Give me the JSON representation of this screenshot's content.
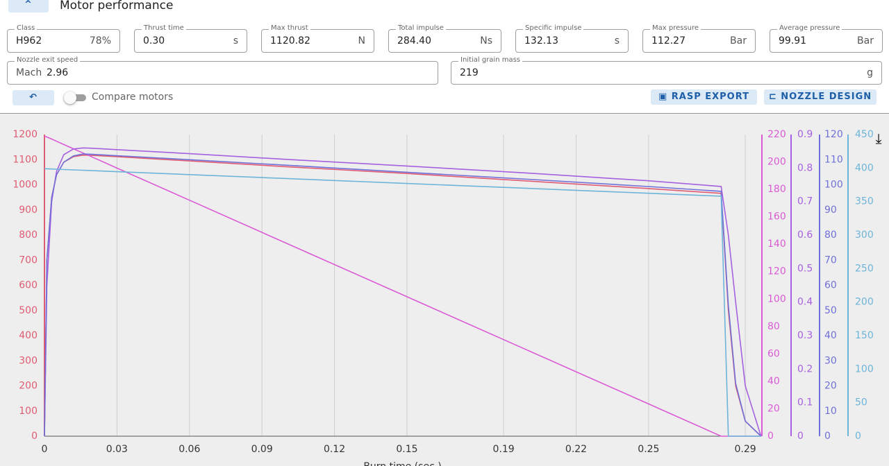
{
  "header": {
    "title": "Motor performance"
  },
  "fields": [
    {
      "label": "Class",
      "value": "H962",
      "unit": "78%"
    },
    {
      "label": "Thrust time",
      "value": "0.30",
      "unit": "s"
    },
    {
      "label": "Max thrust",
      "value": "1120.82",
      "unit": "N"
    },
    {
      "label": "Total impulse",
      "value": "284.40",
      "unit": "Ns"
    },
    {
      "label": "Specific impulse",
      "value": "132.13",
      "unit": "s"
    },
    {
      "label": "Max pressure",
      "value": "112.27",
      "unit": "Bar"
    },
    {
      "label": "Average pressure",
      "value": "99.91",
      "unit": "Bar"
    }
  ],
  "wide_fields": [
    {
      "label": "Nozzle exit speed",
      "prefix": "Mach",
      "value": "2.96"
    },
    {
      "label": "Initial grain mass",
      "value": "219",
      "unit": "g"
    }
  ],
  "toolbar": {
    "toggle": "Compare motors",
    "buttons": [
      "RASP EXPORT",
      "NOZZLE DESIGN"
    ]
  },
  "chart_data": {
    "type": "line",
    "x_label": "Burn time (sec.)",
    "x": [
      0,
      0.001,
      0.003,
      0.005,
      0.008,
      0.012,
      0.016,
      0.02,
      0.03,
      0.06,
      0.1,
      0.15,
      0.2,
      0.25,
      0.28,
      0.283,
      0.286,
      0.29,
      0.2965
    ],
    "xlim": [
      0,
      0.2963
    ],
    "xticks": [
      0,
      0.03,
      0.06,
      0.09,
      0.12,
      0.15,
      0.19,
      0.22,
      0.25,
      0.29
    ],
    "ylim": [
      0,
      1200
    ],
    "yticks": [
      0,
      100,
      200,
      300,
      400,
      500,
      600,
      700,
      800,
      900,
      1000,
      1100,
      1200
    ],
    "y2lim": [
      0,
      220
    ],
    "y2ticks": [
      0,
      20,
      40,
      60,
      80,
      100,
      120,
      140,
      160,
      180,
      200,
      220
    ],
    "y3lim": [
      0,
      0.9
    ],
    "y3ticks": [
      0,
      0.1,
      0.2,
      0.3,
      0.4,
      0.5,
      0.6,
      0.7,
      0.8,
      0.9
    ],
    "y4lim": [
      0,
      120
    ],
    "y4ticks": [
      0,
      10,
      20,
      30,
      40,
      50,
      60,
      70,
      80,
      90,
      100,
      110,
      120
    ],
    "y5lim": [
      0,
      450
    ],
    "y5ticks": [
      0,
      50,
      100,
      150,
      200,
      250,
      300,
      350,
      400,
      450
    ],
    "grid": true,
    "series": [
      {
        "color": "#e05c72",
        "axis": "y",
        "values": [
          0,
          700,
          950,
          1040,
          1090,
          1112,
          1118,
          1117,
          1112,
          1095,
          1072,
          1045,
          1015,
          985,
          966,
          500,
          200,
          60,
          0
        ]
      },
      {
        "color": "#da5ad6",
        "axis": "y2",
        "values": [
          219,
          218.2,
          216.7,
          215.1,
          212.7,
          209.6,
          206.5,
          203.4,
          195.5,
          172.1,
          140.8,
          101.7,
          62.6,
          23.5,
          0,
          0,
          0,
          0,
          0
        ]
      },
      {
        "color": "#a660e0",
        "axis": "y3",
        "values": [
          0,
          0.45,
          0.7,
          0.79,
          0.84,
          0.857,
          0.86,
          0.859,
          0.855,
          0.843,
          0.826,
          0.806,
          0.785,
          0.762,
          0.745,
          0.6,
          0.4,
          0.15,
          0
        ]
      },
      {
        "color": "#6f70d8",
        "axis": "y4",
        "values": [
          0,
          70,
          95,
          104,
          109,
          111.5,
          112.27,
          112.1,
          111.6,
          110,
          107.8,
          105,
          102.2,
          99.3,
          97.4,
          52,
          21,
          6,
          0
        ]
      },
      {
        "color": "#6cb4d9",
        "axis": "y5",
        "values": [
          399,
          398.9,
          398.6,
          398.3,
          397.8,
          397.2,
          396.7,
          396.1,
          394.6,
          390.2,
          384.4,
          377,
          369.7,
          362.4,
          358,
          0,
          0,
          0,
          0
        ]
      }
    ]
  }
}
